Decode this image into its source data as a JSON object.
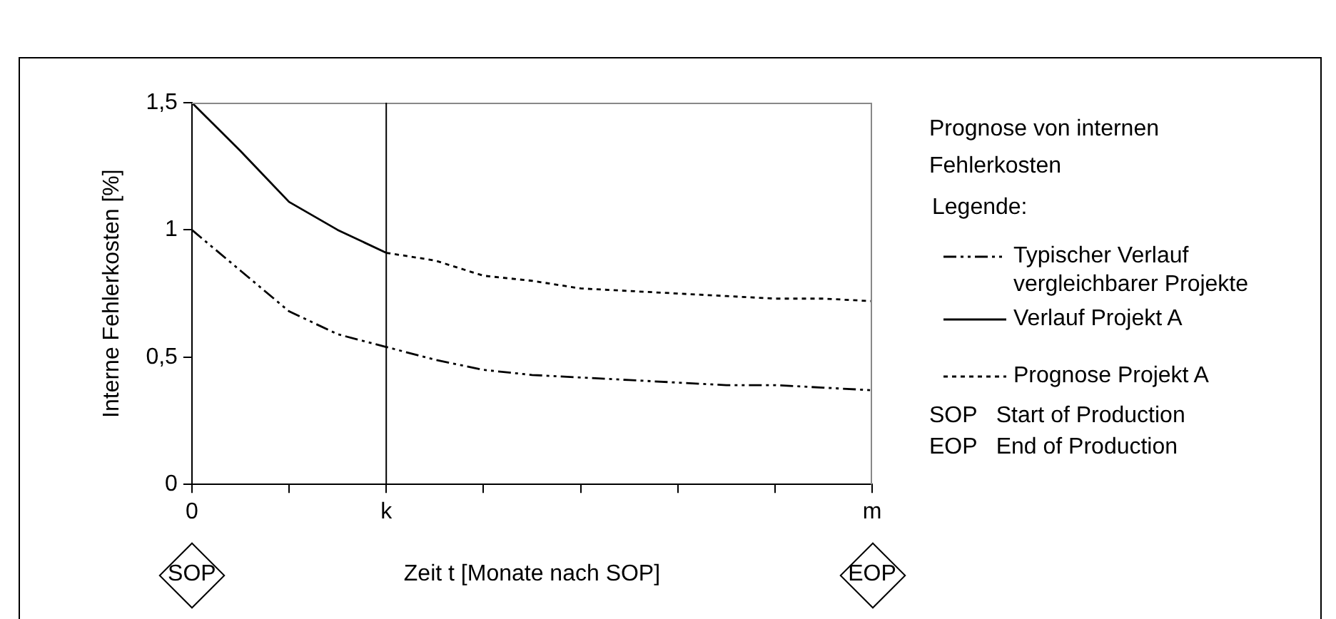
{
  "chart_data": {
    "type": "line",
    "title": "Prognose von internen Fehlerkosten",
    "xlabel": "Zeit t [Monate nach SOP]",
    "ylabel": "Interne Fehlerkosten [%]",
    "legend_title": "Legende:",
    "categories": [
      "0",
      null,
      null,
      null,
      "k",
      null,
      null,
      null,
      null,
      null,
      null,
      null,
      null,
      null,
      "m"
    ],
    "series": [
      {
        "name": "Typischer Verlauf vergleichbarer Projekte",
        "color": "#000000",
        "line_style": "dashdot",
        "values": [
          1.0,
          0.84,
          0.68,
          0.59,
          0.54,
          0.49,
          0.45,
          0.43,
          0.42,
          0.41,
          0.4,
          0.39,
          0.39,
          0.38,
          0.37
        ]
      },
      {
        "name": "Verlauf Projekt A",
        "color": "#000000",
        "line_style": "solid",
        "values": [
          1.5,
          1.31,
          1.11,
          1.0,
          0.91,
          null,
          null,
          null,
          null,
          null,
          null,
          null,
          null,
          null,
          null
        ]
      },
      {
        "name": "Prognose Projekt A",
        "color": "#000000",
        "line_style": "dotted",
        "values": [
          null,
          null,
          null,
          null,
          0.91,
          0.88,
          0.82,
          0.8,
          0.77,
          0.76,
          0.75,
          0.74,
          0.73,
          0.73,
          0.72
        ]
      }
    ],
    "ylim": [
      0,
      1.5
    ],
    "yticks": [
      0,
      {
        "value": 0.5,
        "label": "0,5"
      },
      1,
      {
        "value": 1.5,
        "label": "1,5"
      }
    ],
    "ref_lines": [
      {
        "axis": "x",
        "value": "k"
      }
    ],
    "annotations": [
      "SOP   Start of Production",
      "EOP   End of Production",
      "SOP",
      "EOP"
    ],
    "legend": "right",
    "grid": false,
    "marker": "none"
  }
}
